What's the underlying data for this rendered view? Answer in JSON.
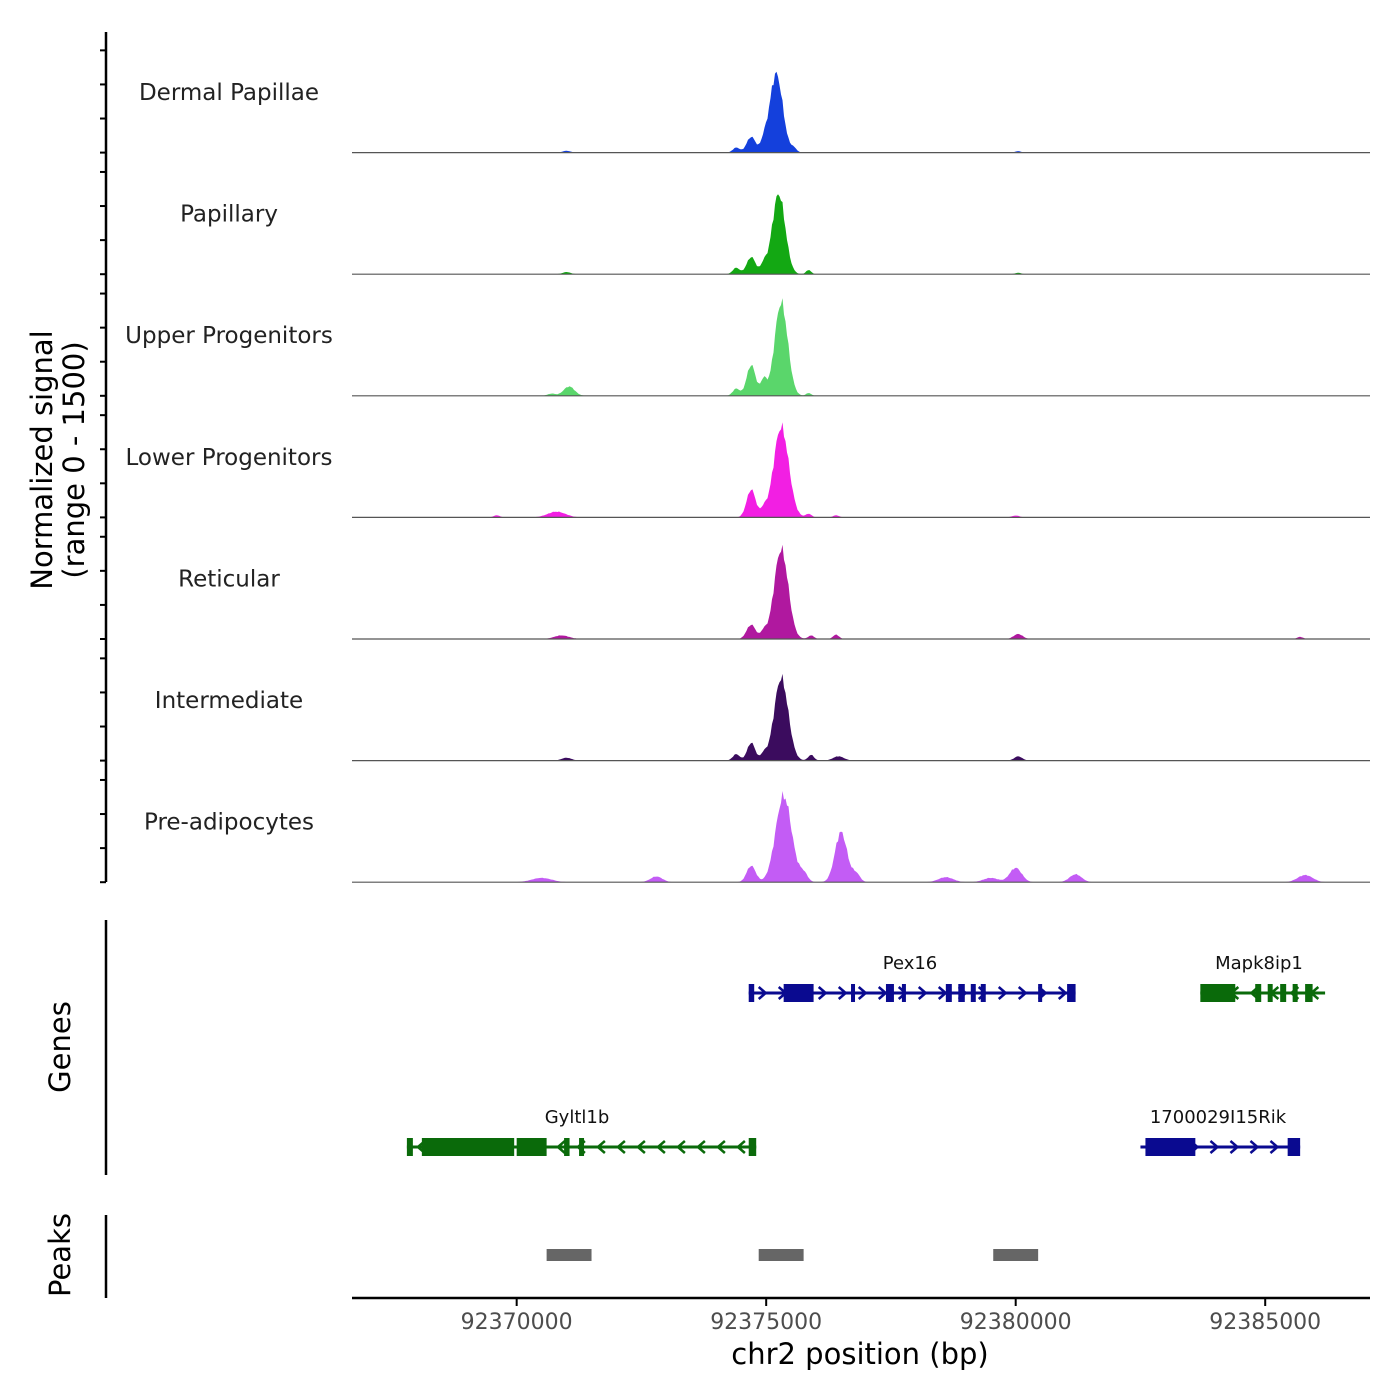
{
  "chart_data": {
    "type": "area",
    "title": "",
    "xlabel": "chr2 position (bp)",
    "ylabel_line1": "Normalized signal",
    "ylabel_line2": "(range 0 - 1500)",
    "xlim": [
      92366700,
      92387100
    ],
    "ylim": [
      0,
      1500
    ],
    "xticks": [
      92370000,
      92375000,
      92380000,
      92385000
    ],
    "xtick_labels": [
      "92370000",
      "92375000",
      "92380000",
      "92385000"
    ],
    "tracks": [
      {
        "name": "Dermal Papillae",
        "color": "#1440dc",
        "peaks": [
          {
            "x": 92374400,
            "w": 70,
            "h": 70
          },
          {
            "x": 92374700,
            "w": 90,
            "h": 220
          },
          {
            "x": 92374950,
            "w": 60,
            "h": 120
          },
          {
            "x": 92375200,
            "w": 130,
            "h": 1100
          },
          {
            "x": 92375550,
            "w": 60,
            "h": 60
          },
          {
            "x": 92371000,
            "w": 80,
            "h": 25
          },
          {
            "x": 92380050,
            "w": 60,
            "h": 20
          }
        ]
      },
      {
        "name": "Papillary",
        "color": "#13a813",
        "peaks": [
          {
            "x": 92374400,
            "w": 70,
            "h": 90
          },
          {
            "x": 92374700,
            "w": 90,
            "h": 240
          },
          {
            "x": 92374950,
            "w": 60,
            "h": 130
          },
          {
            "x": 92375250,
            "w": 130,
            "h": 1120
          },
          {
            "x": 92375850,
            "w": 50,
            "h": 60
          },
          {
            "x": 92371000,
            "w": 80,
            "h": 30
          },
          {
            "x": 92380050,
            "w": 60,
            "h": 20
          }
        ]
      },
      {
        "name": "Upper Progenitors",
        "color": "#5ad66b",
        "peaks": [
          {
            "x": 92374400,
            "w": 70,
            "h": 100
          },
          {
            "x": 92374700,
            "w": 90,
            "h": 430
          },
          {
            "x": 92374950,
            "w": 60,
            "h": 220
          },
          {
            "x": 92375300,
            "w": 130,
            "h": 1300
          },
          {
            "x": 92375850,
            "w": 50,
            "h": 40
          },
          {
            "x": 92371050,
            "w": 110,
            "h": 130
          },
          {
            "x": 92370700,
            "w": 80,
            "h": 30
          }
        ]
      },
      {
        "name": "Lower Progenitors",
        "color": "#f21fe3",
        "peaks": [
          {
            "x": 92374700,
            "w": 90,
            "h": 390
          },
          {
            "x": 92374950,
            "w": 60,
            "h": 100
          },
          {
            "x": 92375300,
            "w": 150,
            "h": 1260
          },
          {
            "x": 92375850,
            "w": 60,
            "h": 50
          },
          {
            "x": 92370800,
            "w": 180,
            "h": 80
          },
          {
            "x": 92369600,
            "w": 60,
            "h": 30
          },
          {
            "x": 92376400,
            "w": 60,
            "h": 30
          },
          {
            "x": 92380000,
            "w": 80,
            "h": 25
          }
        ]
      },
      {
        "name": "Reticular",
        "color": "#b0189f",
        "peaks": [
          {
            "x": 92374700,
            "w": 90,
            "h": 200
          },
          {
            "x": 92374950,
            "w": 60,
            "h": 100
          },
          {
            "x": 92375300,
            "w": 140,
            "h": 1250
          },
          {
            "x": 92375900,
            "w": 60,
            "h": 50
          },
          {
            "x": 92376400,
            "w": 60,
            "h": 60
          },
          {
            "x": 92370900,
            "w": 150,
            "h": 50
          },
          {
            "x": 92380050,
            "w": 90,
            "h": 70
          },
          {
            "x": 92385700,
            "w": 60,
            "h": 30
          }
        ]
      },
      {
        "name": "Intermediate",
        "color": "#3b0c5e",
        "peaks": [
          {
            "x": 92374400,
            "w": 70,
            "h": 90
          },
          {
            "x": 92374700,
            "w": 80,
            "h": 250
          },
          {
            "x": 92374950,
            "w": 60,
            "h": 90
          },
          {
            "x": 92375300,
            "w": 140,
            "h": 1150
          },
          {
            "x": 92375900,
            "w": 60,
            "h": 80
          },
          {
            "x": 92376450,
            "w": 110,
            "h": 60
          },
          {
            "x": 92371000,
            "w": 100,
            "h": 40
          },
          {
            "x": 92380050,
            "w": 80,
            "h": 60
          }
        ]
      },
      {
        "name": "Pre-adipocytes",
        "color": "#c35cf5",
        "peaks": [
          {
            "x": 92374700,
            "w": 90,
            "h": 230
          },
          {
            "x": 92375350,
            "w": 160,
            "h": 1200
          },
          {
            "x": 92375750,
            "w": 80,
            "h": 120
          },
          {
            "x": 92376500,
            "w": 120,
            "h": 700
          },
          {
            "x": 92376800,
            "w": 80,
            "h": 120
          },
          {
            "x": 92380000,
            "w": 120,
            "h": 200
          },
          {
            "x": 92381200,
            "w": 120,
            "h": 110
          },
          {
            "x": 92385800,
            "w": 150,
            "h": 100
          },
          {
            "x": 92378600,
            "w": 150,
            "h": 70
          },
          {
            "x": 92379500,
            "w": 150,
            "h": 60
          },
          {
            "x": 92372800,
            "w": 120,
            "h": 80
          },
          {
            "x": 92370500,
            "w": 200,
            "h": 60
          }
        ]
      }
    ],
    "genes_label": "Genes",
    "genes": [
      {
        "name": "Pex16",
        "strand": "+",
        "color": "#0a0a90",
        "row": 0,
        "start": 92374650,
        "end": 92381200,
        "exons": [
          [
            92374650,
            92374760
          ],
          [
            92375350,
            92375950
          ],
          [
            92376700,
            92376760
          ],
          [
            92377400,
            92377560
          ],
          [
            92377720,
            92377800
          ],
          [
            92378600,
            92378720
          ],
          [
            92378850,
            92378980
          ],
          [
            92379100,
            92379200
          ],
          [
            92379300,
            92379400
          ],
          [
            92380450,
            92380500
          ],
          [
            92381030,
            92381200
          ]
        ]
      },
      {
        "name": "Mapk8ip1",
        "strand": "-",
        "color": "#0a6a0a",
        "row": 0,
        "start": 92383700,
        "end": 92386200,
        "exons": [
          [
            92383700,
            92384400
          ],
          [
            92384800,
            92384920
          ],
          [
            92385050,
            92385150
          ],
          [
            92385300,
            92385420
          ],
          [
            92385550,
            92385650
          ],
          [
            92385800,
            92385950
          ]
        ]
      },
      {
        "name": "Gyltl1b",
        "strand": "-",
        "color": "#0a6a0a",
        "row": 1,
        "start": 92367800,
        "end": 92374800,
        "exons": [
          [
            92367800,
            92367920
          ],
          [
            92368100,
            92369950
          ],
          [
            92370000,
            92370600
          ],
          [
            92370950,
            92371060
          ],
          [
            92371250,
            92371350
          ],
          [
            92374650,
            92374800
          ]
        ]
      },
      {
        "name": "1700029I15Rik",
        "strand": "+",
        "color": "#0a0a90",
        "row": 1,
        "start": 92382500,
        "end": 92385700,
        "exons": [
          [
            92382600,
            92383600
          ],
          [
            92385450,
            92385700
          ]
        ]
      }
    ],
    "peaks_label": "Peaks",
    "peak_regions": [
      [
        92370600,
        92371500
      ],
      [
        92374850,
        92375750
      ],
      [
        92379550,
        92380450
      ]
    ]
  }
}
